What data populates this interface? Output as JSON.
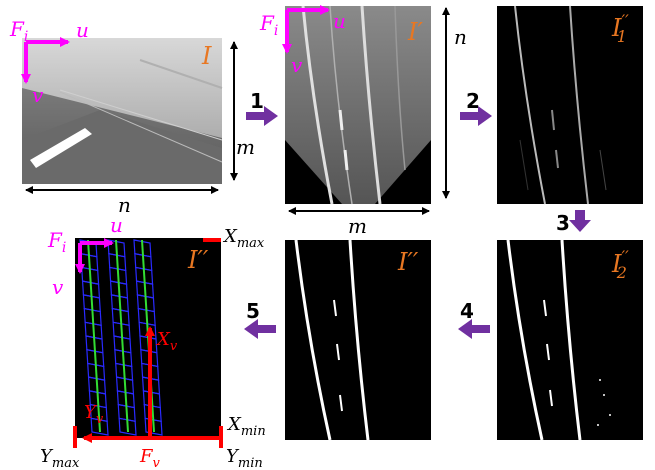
{
  "colors": {
    "magenta": "#ff00ff",
    "orange": "#e87722",
    "purple": "#7030a0",
    "red": "#ff0000",
    "grid_blue": "#2a2aff",
    "lane_green": "#33dd33"
  },
  "frames": {
    "input_label": "I",
    "ipm_label": "I′",
    "filtered_label_base": "I",
    "filtered_label_sub": "1",
    "filtered_label_prime": "′′",
    "threshold_label_base": "I",
    "threshold_label_sub": "2",
    "threshold_label_prime": "′′",
    "final_label": "I′′",
    "annotated_label": "I′′"
  },
  "axes": {
    "frame_base": "F",
    "frame_sub": "i",
    "u": "u",
    "v": "v",
    "n": "n",
    "m": "m"
  },
  "steps": [
    "1",
    "2",
    "3",
    "4",
    "5"
  ],
  "vehicle_axes": {
    "xmax_base": "X",
    "xmax_sub": "max",
    "xmin_base": "X",
    "xmin_sub": "min",
    "ymax_base": "Y",
    "ymax_sub": "max",
    "ymin_base": "Y",
    "ymin_sub": "min",
    "xv_base": "X",
    "xv_sub": "v",
    "yv_base": "Y",
    "yv_sub": "v",
    "fv_base": "F",
    "fv_sub": "v"
  }
}
